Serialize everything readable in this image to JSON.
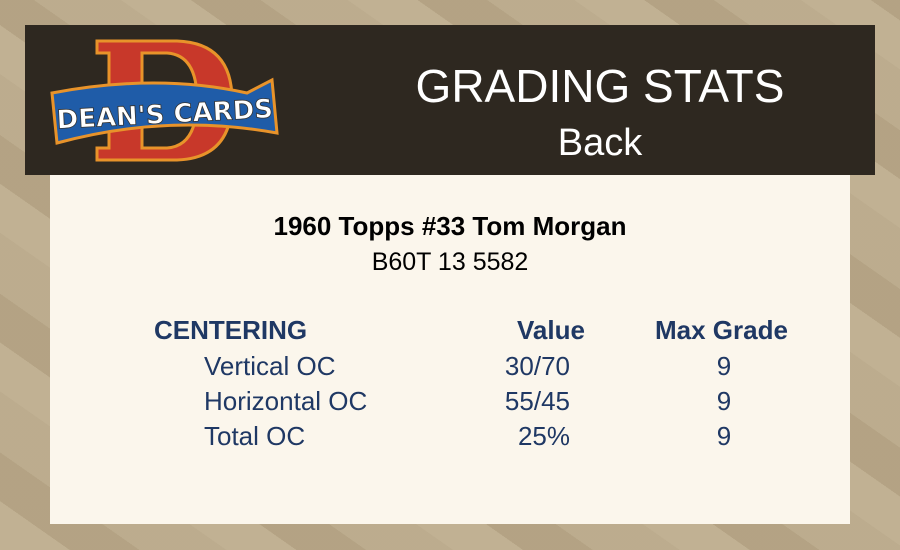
{
  "logo": {
    "text": "DEAN'S CARDS",
    "letter": "D"
  },
  "header": {
    "title": "GRADING STATS",
    "subtitle": "Back"
  },
  "card": {
    "name": "1960 Topps #33 Tom Morgan",
    "code": "B60T 13 5582"
  },
  "table": {
    "headers": [
      "CENTERING",
      "Value",
      "Max Grade"
    ],
    "rows": [
      {
        "label": "Vertical OC",
        "value": "30/70",
        "max": "9"
      },
      {
        "label": "Horizontal OC",
        "value": "55/45",
        "max": "9"
      },
      {
        "label": "Total OC",
        "value": "25%",
        "max": "9"
      }
    ]
  },
  "colors": {
    "header_bg": "#2e2820",
    "panel_bg": "#fbf6ec",
    "text_blue": "#1f3864"
  }
}
